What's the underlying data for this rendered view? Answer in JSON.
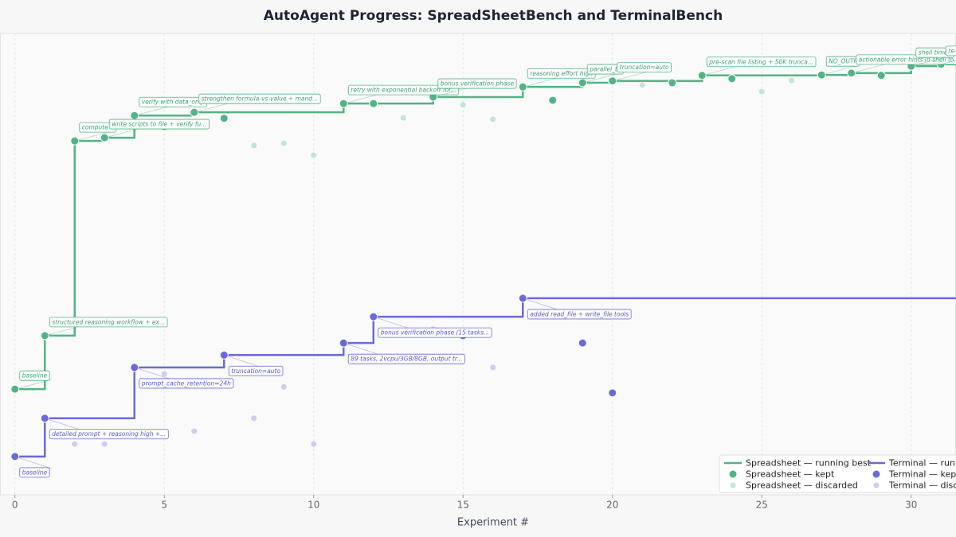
{
  "chart_data": {
    "type": "step-progress",
    "title": "AutoAgent Progress: SpreadSheetBench and TerminalBench",
    "x_label": "Experiment #",
    "xlim": [
      -0.5,
      31.5
    ],
    "xticks": [
      0,
      5,
      10,
      15,
      20,
      25,
      30
    ],
    "ylim": [
      0,
      100
    ],
    "grid": true,
    "legend": "lower right",
    "series": [
      {
        "name": "Spreadsheet — running best",
        "kind": "step",
        "color": "#52b385",
        "x": [
          0,
          1,
          2,
          3,
          4,
          6,
          11,
          14,
          17,
          19,
          20,
          23,
          27,
          28,
          30,
          31
        ],
        "values": [
          22.9,
          34.5,
          76.7,
          77.4,
          82.2,
          82.9,
          84.8,
          86.2,
          88.4,
          89.3,
          89.7,
          90.9,
          91.0,
          91.4,
          92.9,
          93.3
        ]
      },
      {
        "name": "Spreadsheet — kept",
        "kind": "kept",
        "color": "#52b385",
        "x": [
          0,
          1,
          2,
          3,
          4,
          5,
          6,
          7,
          11,
          12,
          14,
          17,
          18,
          19,
          20,
          22,
          23,
          24,
          27,
          28,
          29,
          30,
          31
        ],
        "values": [
          22.9,
          34.5,
          76.7,
          77.4,
          82.2,
          79.8,
          82.9,
          81.6,
          84.8,
          84.8,
          86.2,
          88.4,
          85.5,
          89.3,
          89.7,
          89.3,
          90.9,
          90.2,
          91.0,
          91.4,
          90.9,
          92.9,
          93.3
        ]
      },
      {
        "name": "Spreadsheet — discarded",
        "kind": "discarded",
        "color": "#bde8d2",
        "x": [
          8,
          9,
          10,
          13,
          15,
          16,
          21,
          25,
          26
        ],
        "values": [
          75.7,
          76.2,
          73.6,
          81.7,
          84.5,
          81.4,
          88.8,
          87.4,
          89.8
        ]
      },
      {
        "name": "Terminal — running best",
        "kind": "step",
        "color": "#6a6ad8",
        "x": [
          0,
          1,
          4,
          7,
          11,
          12,
          17
        ],
        "values": [
          8.3,
          16.6,
          27.6,
          30.3,
          32.9,
          38.6,
          42.6
        ]
      },
      {
        "name": "Terminal — kept",
        "kind": "kept",
        "color": "#6a6ad8",
        "x": [
          0,
          1,
          4,
          7,
          11,
          12,
          15,
          17,
          19,
          20
        ],
        "values": [
          8.3,
          16.6,
          27.6,
          30.3,
          32.9,
          38.6,
          34.5,
          42.6,
          32.9,
          22.1
        ]
      },
      {
        "name": "Terminal — discarded",
        "kind": "discarded",
        "color": "#cdcdf2",
        "x": [
          2,
          3,
          5,
          6,
          8,
          9,
          10,
          14,
          16,
          18
        ],
        "values": [
          11.0,
          11.0,
          26.2,
          13.8,
          16.6,
          23.4,
          11.0,
          35.9,
          27.6,
          38.6
        ]
      }
    ],
    "annotations": [
      {
        "series": 1,
        "x": 0,
        "text": "baseline"
      },
      {
        "series": 1,
        "x": 1,
        "text": "structured reasoning workflow + ex..."
      },
      {
        "series": 1,
        "x": 2,
        "text": "compute v"
      },
      {
        "series": 1,
        "x": 3,
        "text": "write scripts to file + verify fu..."
      },
      {
        "series": 1,
        "x": 4,
        "text": "verify with data_only"
      },
      {
        "series": 1,
        "x": 6,
        "text": "strengthen formula-vs-value + mand..."
      },
      {
        "series": 1,
        "x": 11,
        "text": "retry with exponential backoff for..."
      },
      {
        "series": 1,
        "x": 14,
        "text": "bonus verification phase"
      },
      {
        "series": 1,
        "x": 17,
        "text": "reasoning effort high"
      },
      {
        "series": 1,
        "x": 19,
        "text": "parallel_to"
      },
      {
        "series": 1,
        "x": 20,
        "text": "truncation=auto"
      },
      {
        "series": 1,
        "x": 23,
        "text": "pre-scan file listing + 50K trunca..."
      },
      {
        "series": 1,
        "x": 27,
        "text": "NO_OUTP"
      },
      {
        "series": 1,
        "x": 28,
        "text": "actionable error hints in shell to..."
      },
      {
        "series": 1,
        "x": 30,
        "text": "shell timeo"
      },
      {
        "series": 1,
        "x": 31,
        "text": "re-r"
      },
      {
        "series": 4,
        "x": 0,
        "text": "baseline"
      },
      {
        "series": 4,
        "x": 1,
        "text": "detailed prompt + reasoning high +..."
      },
      {
        "series": 4,
        "x": 4,
        "text": "prompt_cache_retention=24h"
      },
      {
        "series": 4,
        "x": 7,
        "text": "truncation=auto"
      },
      {
        "series": 4,
        "x": 11,
        "text": "89 tasks, 2vcpu/3GB/8GB, output tr..."
      },
      {
        "series": 4,
        "x": 12,
        "text": "bonus verification phase (15 tasks..."
      },
      {
        "series": 4,
        "x": 17,
        "text": "added read_file + write_file tools"
      }
    ]
  }
}
